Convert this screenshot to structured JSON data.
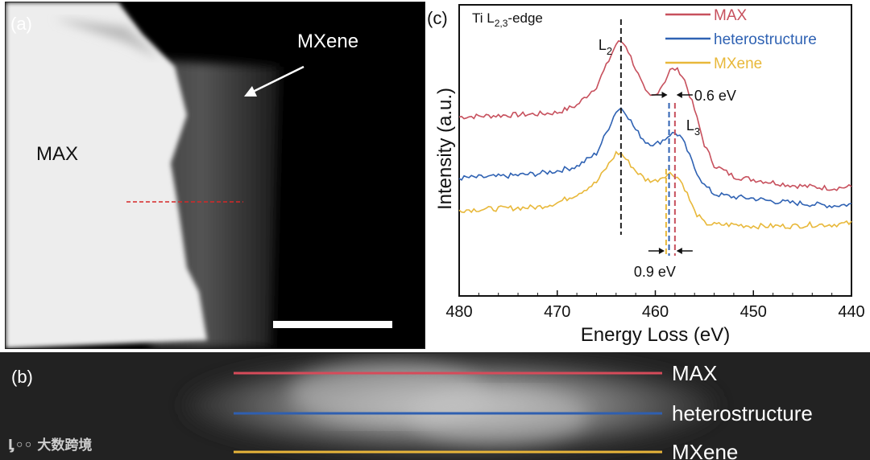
{
  "panel_a": {
    "label": "(a)",
    "max_label": "MAX",
    "mxene_label": "MXene"
  },
  "panel_b": {
    "label": "(b)",
    "lines": [
      {
        "name": "MAX",
        "color": "#d64b5a"
      },
      {
        "name": "heterostructure",
        "color": "#2f5fb0"
      },
      {
        "name": "MXene",
        "color": "#e8b53a"
      }
    ]
  },
  "chart_data": {
    "type": "line",
    "panel_label": "(c)",
    "title": "Ti L2,3-edge",
    "xlabel": "Energy Loss (eV)",
    "ylabel": "Intensity (a.u.)",
    "xlim": [
      480,
      440
    ],
    "xticks": [
      480,
      470,
      460,
      450,
      440
    ],
    "ylim": [
      0,
      1
    ],
    "legend_position": "top-right",
    "series": [
      {
        "name": "MAX",
        "color": "#c7505d",
        "x": [
          480,
          476,
          472,
          470,
          468,
          466,
          465,
          464,
          463.5,
          463,
          462,
          461,
          460.5,
          460,
          459,
          458.5,
          458,
          457.5,
          457,
          456,
          455,
          454,
          452,
          450,
          448,
          446,
          444,
          442,
          440
        ],
        "y": [
          0.615,
          0.62,
          0.625,
          0.63,
          0.655,
          0.72,
          0.79,
          0.865,
          0.875,
          0.86,
          0.78,
          0.7,
          0.685,
          0.69,
          0.74,
          0.775,
          0.78,
          0.77,
          0.74,
          0.64,
          0.52,
          0.45,
          0.41,
          0.4,
          0.39,
          0.38,
          0.375,
          0.37,
          0.375
        ]
      },
      {
        "name": "heterostructure",
        "color": "#2f62b3",
        "x": [
          480,
          476,
          472,
          470,
          468,
          466,
          465,
          464,
          463.5,
          463,
          462,
          461,
          460,
          459,
          458.5,
          458,
          457.5,
          457,
          456,
          455,
          454,
          452,
          450,
          448,
          446,
          444,
          442,
          440
        ],
        "y": [
          0.405,
          0.41,
          0.42,
          0.43,
          0.445,
          0.49,
          0.56,
          0.635,
          0.645,
          0.63,
          0.57,
          0.53,
          0.52,
          0.54,
          0.555,
          0.56,
          0.55,
          0.52,
          0.44,
          0.38,
          0.35,
          0.34,
          0.335,
          0.325,
          0.32,
          0.315,
          0.31,
          0.315
        ]
      },
      {
        "name": "MXene",
        "color": "#e8b83a",
        "x": [
          480,
          476,
          472,
          470,
          468,
          466,
          465,
          464,
          463.5,
          463,
          462,
          461,
          460,
          459,
          458.5,
          458,
          457.5,
          457,
          456,
          455,
          454,
          452,
          450,
          448,
          446,
          444,
          442,
          440
        ],
        "y": [
          0.295,
          0.3,
          0.305,
          0.32,
          0.35,
          0.39,
          0.44,
          0.49,
          0.49,
          0.47,
          0.43,
          0.4,
          0.395,
          0.415,
          0.42,
          0.415,
          0.4,
          0.37,
          0.29,
          0.25,
          0.245,
          0.245,
          0.24,
          0.24,
          0.24,
          0.245,
          0.245,
          0.25
        ]
      }
    ],
    "annotations": [
      {
        "text": "L2",
        "x": 463.5
      },
      {
        "text": "L3",
        "x": 458
      },
      {
        "text": "0.6 eV",
        "between": [
          458.6,
          458.0
        ]
      },
      {
        "text": "0.9 eV",
        "between": [
          458.9,
          458.0
        ]
      }
    ],
    "vlines": [
      {
        "x": 463.5,
        "color": "#222222"
      },
      {
        "x": 458.6,
        "color": "#2f62b3"
      },
      {
        "x": 458.0,
        "color": "#c7505d"
      },
      {
        "x": 458.9,
        "color": "#e8b83a"
      }
    ]
  },
  "watermark": "大数跨境"
}
